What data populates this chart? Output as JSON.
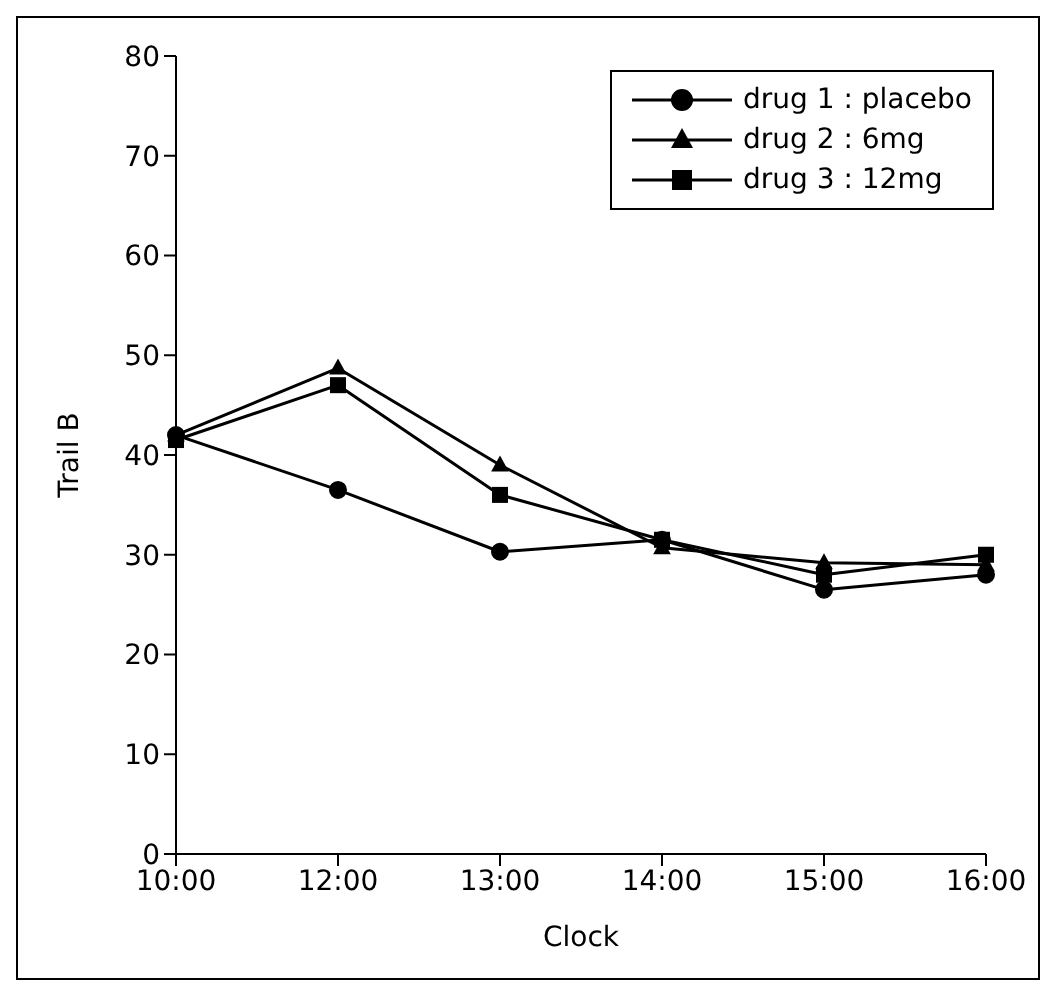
{
  "chart_data": {
    "type": "line",
    "xlabel": "Clock",
    "ylabel": "Trail B",
    "categories": [
      "10:00",
      "12:00",
      "13:00",
      "14:00",
      "15:00",
      "16:00"
    ],
    "ylim": [
      0,
      80
    ],
    "yticks": [
      0,
      10,
      20,
      30,
      40,
      50,
      60,
      70,
      80
    ],
    "grid": false,
    "legend": "top right",
    "line_style": "solid",
    "series": [
      {
        "name": "drug 1 : placebo",
        "color": "#000000",
        "marker": "circle",
        "values": [
          42,
          36.5,
          30.3,
          31.5,
          26.5,
          28
        ]
      },
      {
        "name": "drug 2 : 6mg",
        "color": "#000000",
        "marker": "triangle",
        "values": [
          42,
          48.7,
          39,
          30.7,
          29.2,
          29
        ]
      },
      {
        "name": "drug 3 : 12mg",
        "color": "#000000",
        "marker": "square",
        "values": [
          41.5,
          47,
          36,
          31.5,
          28,
          30
        ]
      }
    ]
  }
}
